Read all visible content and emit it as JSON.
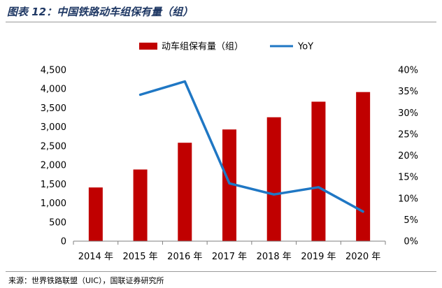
{
  "figure": {
    "title": "图表 12：中国铁路动车组保有量（组）",
    "source": "来源：世界铁路联盟（UIC），国联证券研究所"
  },
  "colors": {
    "bar": "#c00000",
    "line": "#1f77c4",
    "axis": "#7f7f7f"
  },
  "chart_data": {
    "type": "bar",
    "title": "",
    "categories": [
      "2014 年",
      "2015 年",
      "2016 年",
      "2017 年",
      "2018 年",
      "2019 年",
      "2020 年"
    ],
    "series": [
      {
        "name": "动车组保有量（组）",
        "type": "bar",
        "axis": "left",
        "values": [
          1411,
          1883,
          2586,
          2935,
          3256,
          3665,
          3918
        ]
      },
      {
        "name": "YoY",
        "type": "line",
        "axis": "right",
        "values": [
          null,
          0.342,
          0.373,
          0.135,
          0.109,
          0.126,
          0.069
        ]
      }
    ],
    "y_left": {
      "min": 0,
      "max": 4500,
      "step": 500,
      "tick_labels": [
        "0",
        "500",
        "1,000",
        "1,500",
        "2,000",
        "2,500",
        "3,000",
        "3,500",
        "4,000",
        "4,500"
      ]
    },
    "y_right": {
      "min": 0,
      "max": 0.4,
      "step": 0.05,
      "tick_labels": [
        "0%",
        "5%",
        "10%",
        "15%",
        "20%",
        "25%",
        "30%",
        "35%",
        "40%"
      ]
    },
    "legend_position": "top",
    "grid": false
  }
}
